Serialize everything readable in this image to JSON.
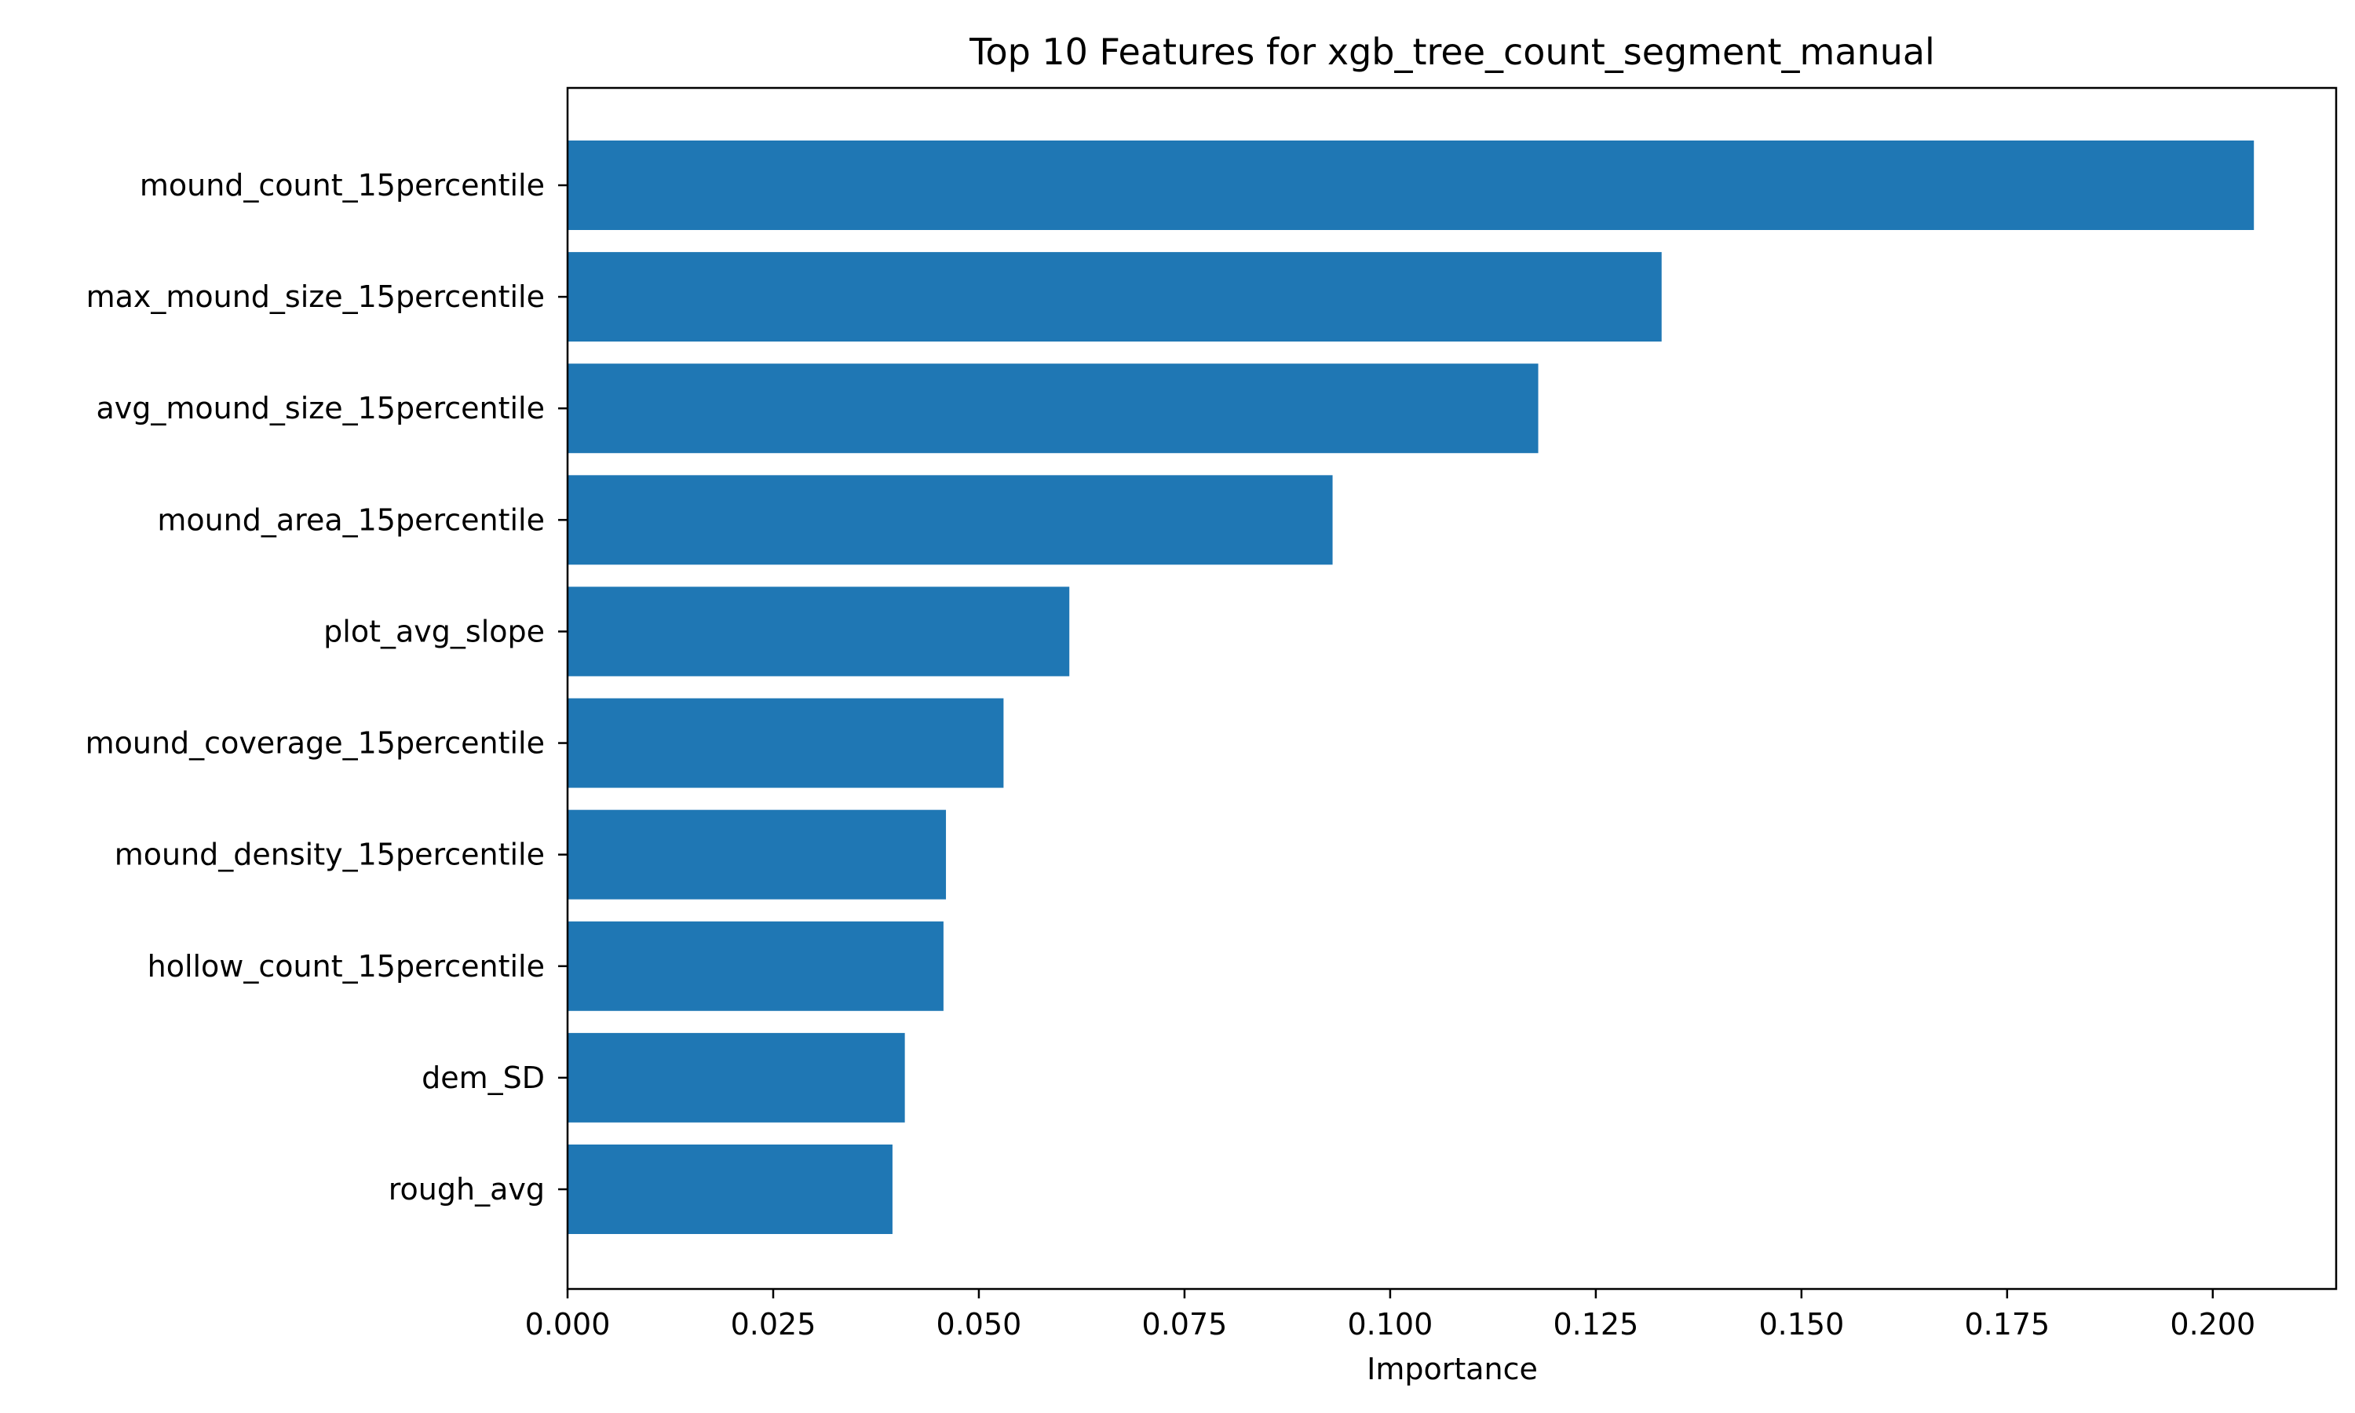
{
  "chart_data": {
    "type": "bar",
    "orientation": "horizontal",
    "title": "Top 10 Features for xgb_tree_count_segment_manual",
    "xlabel": "Importance",
    "ylabel": "",
    "categories": [
      "mound_count_15percentile",
      "max_mound_size_15percentile",
      "avg_mound_size_15percentile",
      "mound_area_15percentile",
      "plot_avg_slope",
      "mound_coverage_15percentile",
      "mound_density_15percentile",
      "hollow_count_15percentile",
      "dem_SD",
      "rough_avg"
    ],
    "values": [
      0.205,
      0.133,
      0.118,
      0.093,
      0.061,
      0.053,
      0.046,
      0.0457,
      0.041,
      0.0395
    ],
    "xlim": [
      0,
      0.215
    ],
    "xticks": [
      0.0,
      0.025,
      0.05,
      0.075,
      0.1,
      0.125,
      0.15,
      0.175,
      0.2
    ],
    "xtick_labels": [
      "0.000",
      "0.025",
      "0.050",
      "0.075",
      "0.100",
      "0.125",
      "0.150",
      "0.175",
      "0.200"
    ],
    "grid": false,
    "legend": "none",
    "bar_color": "#1f77b4"
  }
}
